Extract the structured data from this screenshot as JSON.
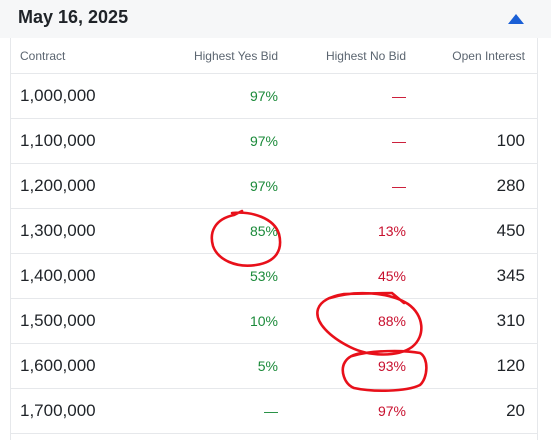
{
  "header": {
    "date": "May 16, 2025",
    "toggle_icon": "caret-up-icon",
    "accent": "#1a5fd6"
  },
  "table": {
    "columns": {
      "contract": "Contract",
      "yes": "Highest Yes Bid",
      "no": "Highest No Bid",
      "oi": "Open Interest"
    },
    "rows": [
      {
        "contract": "1,000,000",
        "yes": "97%",
        "no": "—",
        "oi": ""
      },
      {
        "contract": "1,100,000",
        "yes": "97%",
        "no": "—",
        "oi": "100"
      },
      {
        "contract": "1,200,000",
        "yes": "97%",
        "no": "—",
        "oi": "280"
      },
      {
        "contract": "1,300,000",
        "yes": "85%",
        "no": "13%",
        "oi": "450"
      },
      {
        "contract": "1,400,000",
        "yes": "53%",
        "no": "45%",
        "oi": "345"
      },
      {
        "contract": "1,500,000",
        "yes": "10%",
        "no": "88%",
        "oi": "310"
      },
      {
        "contract": "1,600,000",
        "yes": "5%",
        "no": "93%",
        "oi": "120"
      },
      {
        "contract": "1,700,000",
        "yes": "—",
        "no": "97%",
        "oi": "20"
      }
    ]
  },
  "colors": {
    "yes": "#1b8a3a",
    "no": "#c8102e",
    "annotation": "#e8101a"
  }
}
